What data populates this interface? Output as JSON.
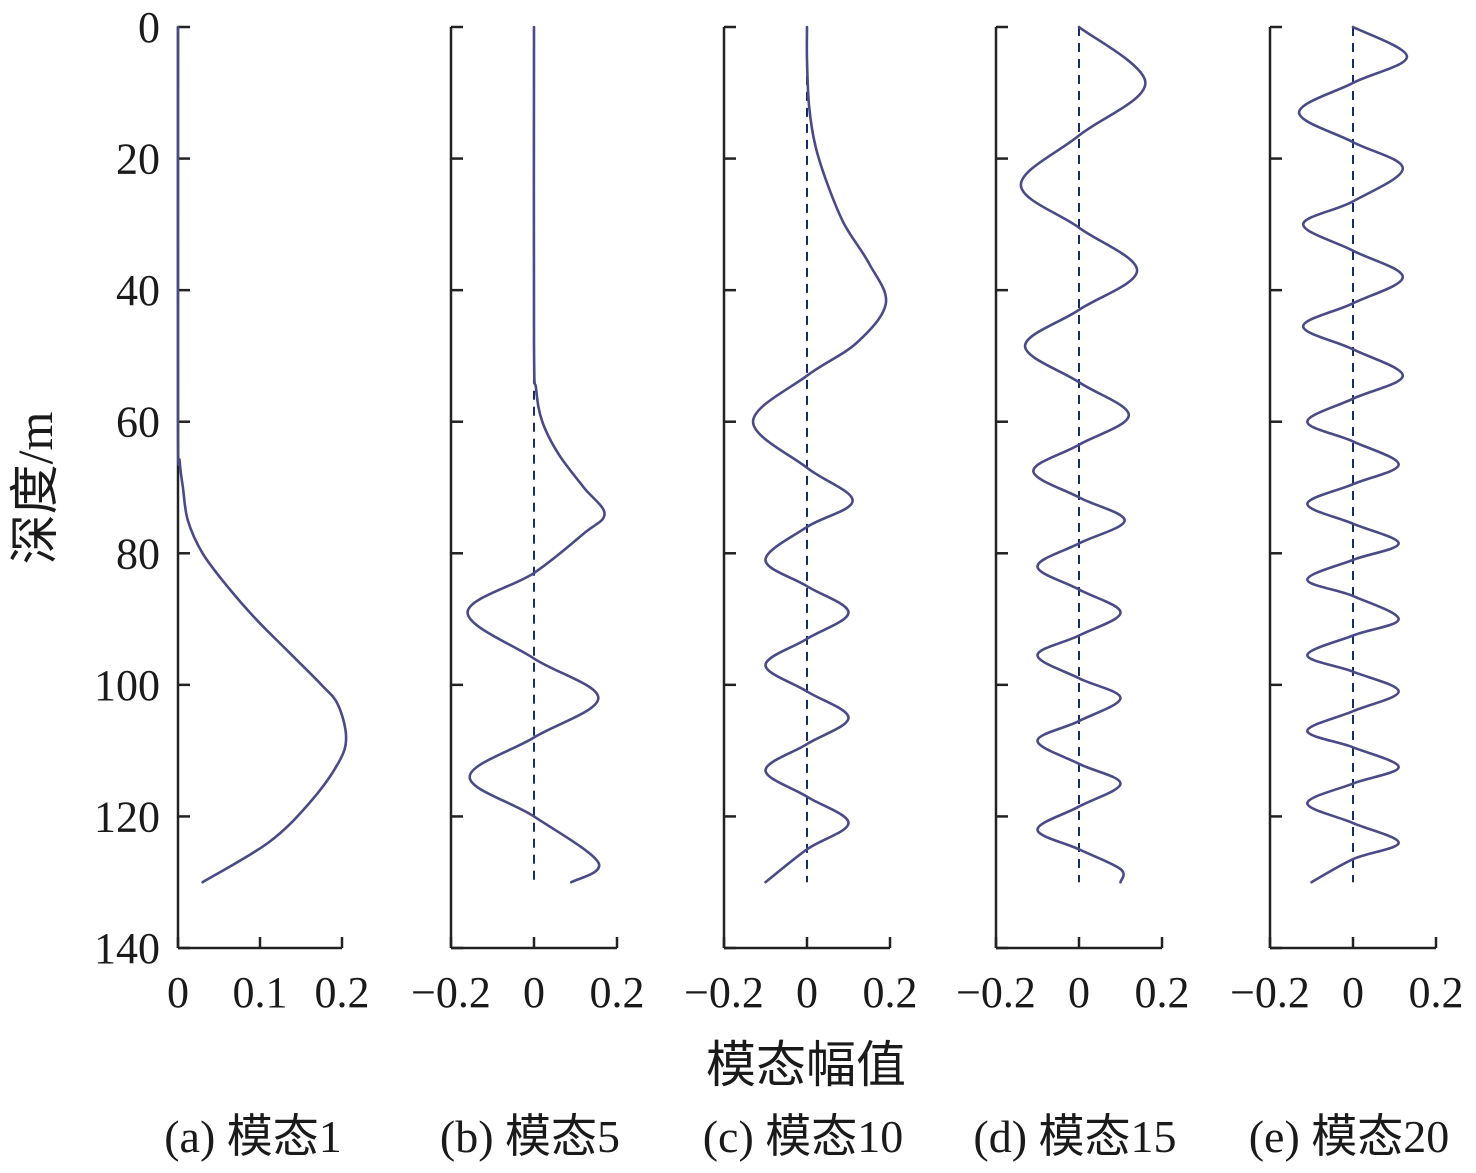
{
  "chart_data": {
    "type": "line",
    "ylabel": "深度/m",
    "xlabel": "模态幅值",
    "y_ticks": [
      "0",
      "20",
      "40",
      "60",
      "80",
      "100",
      "120",
      "140"
    ],
    "y_tick_values": [
      0,
      20,
      40,
      60,
      80,
      100,
      120,
      140
    ],
    "ylim": [
      0,
      140
    ],
    "y_inverted": true,
    "colors": {
      "curve_primary": "#4a4a86",
      "curve_alt": "#4848aa",
      "axis": "#222222",
      "zero_line": "#1c2a6a"
    },
    "panels": [
      {
        "caption": "(a) 模态1",
        "xlim": [
          0,
          0.2
        ],
        "x_ticks": [
          "0",
          "0.1",
          "0.2"
        ],
        "x_tick_values": [
          0,
          0.1,
          0.2
        ],
        "zero_line": false,
        "series": [
          {
            "mode": 1,
            "amplitude": 0.21,
            "depth_range": [
              0,
              130
            ],
            "points": [
              [
                0,
                0
              ],
              [
                60,
                0
              ],
              [
                66,
                0.002
              ],
              [
                70,
                0.006
              ],
              [
                75,
                0.012
              ],
              [
                80,
                0.03
              ],
              [
                85,
                0.06
              ],
              [
                90,
                0.095
              ],
              [
                95,
                0.135
              ],
              [
                100,
                0.175
              ],
              [
                103,
                0.195
              ],
              [
                108,
                0.205
              ],
              [
                112,
                0.195
              ],
              [
                118,
                0.16
              ],
              [
                124,
                0.11
              ],
              [
                130,
                0.03
              ]
            ]
          }
        ]
      },
      {
        "caption": "(b) 模态5",
        "xlim": [
          -0.2,
          0.2
        ],
        "x_ticks": [
          "−0.2",
          "0",
          "0.2"
        ],
        "x_tick_values": [
          -0.2,
          0,
          0.2
        ],
        "zero_line": true,
        "series": [
          {
            "mode": 5,
            "amplitude": 0.17,
            "depth_range": [
              0,
              130
            ],
            "onset_depth": 48,
            "zero_crossings": [
              83,
              96,
              108,
              120
            ],
            "points": [
              [
                0,
                0
              ],
              [
                48,
                0
              ],
              [
                55,
                0.005
              ],
              [
                60,
                0.02
              ],
              [
                65,
                0.06
              ],
              [
                70,
                0.12
              ],
              [
                74,
                0.17
              ],
              [
                77,
                0.12
              ],
              [
                83,
                0
              ],
              [
                89,
                -0.16
              ],
              [
                96,
                0
              ],
              [
                102,
                0.155
              ],
              [
                108,
                0
              ],
              [
                114,
                -0.155
              ],
              [
                120,
                0
              ],
              [
                127,
                0.155
              ],
              [
                130,
                0.09
              ]
            ]
          }
        ]
      },
      {
        "caption": "(c) 模态10",
        "xlim": [
          -0.2,
          0.2
        ],
        "x_ticks": [
          "−0.2",
          "0",
          "0.2"
        ],
        "x_tick_values": [
          -0.2,
          0,
          0.2
        ],
        "zero_line": true,
        "series": [
          {
            "mode": 10,
            "amplitude": 0.19,
            "depth_range": [
              0,
              130
            ],
            "onset_depth": 5,
            "zero_crossings": [
              53,
              67,
              76,
              85,
              93,
              101,
              109,
              117,
              125
            ],
            "points": [
              [
                0,
                0
              ],
              [
                5,
                0
              ],
              [
                12,
                0.005
              ],
              [
                18,
                0.02
              ],
              [
                24,
                0.05
              ],
              [
                30,
                0.09
              ],
              [
                36,
                0.15
              ],
              [
                42,
                0.19
              ],
              [
                48,
                0.12
              ],
              [
                53,
                0
              ],
              [
                60,
                -0.13
              ],
              [
                67,
                0
              ],
              [
                72,
                0.11
              ],
              [
                76,
                0
              ],
              [
                81,
                -0.1
              ],
              [
                85,
                0
              ],
              [
                89,
                0.1
              ],
              [
                93,
                0
              ],
              [
                97,
                -0.1
              ],
              [
                101,
                0
              ],
              [
                105,
                0.1
              ],
              [
                109,
                0
              ],
              [
                113,
                -0.1
              ],
              [
                117,
                0
              ],
              [
                121,
                0.1
              ],
              [
                125,
                0
              ],
              [
                130,
                -0.1
              ]
            ]
          }
        ]
      },
      {
        "caption": "(d) 模态15",
        "xlim": [
          -0.2,
          0.2
        ],
        "x_ticks": [
          "−0.2",
          "0",
          "0.2"
        ],
        "x_tick_values": [
          -0.2,
          0,
          0.2
        ],
        "zero_line": true,
        "series": [
          {
            "mode": 15,
            "amplitude": 0.14,
            "depth_range": [
              0,
              130
            ],
            "zero_crossings": [
              0,
              16.5,
              30.5,
              43,
              54,
              63.5,
              71.5,
              78.5,
              85.5,
              92.5,
              99,
              105.5,
              112,
              118.5,
              125
            ],
            "points": [
              [
                0,
                0
              ],
              [
                8.5,
                0.16
              ],
              [
                16.5,
                0
              ],
              [
                24,
                -0.14
              ],
              [
                30.5,
                0
              ],
              [
                37,
                0.14
              ],
              [
                43,
                0
              ],
              [
                48.5,
                -0.13
              ],
              [
                54,
                0
              ],
              [
                59,
                0.12
              ],
              [
                63.5,
                0
              ],
              [
                67.5,
                -0.11
              ],
              [
                71.5,
                0
              ],
              [
                75,
                0.11
              ],
              [
                78.5,
                0
              ],
              [
                82,
                -0.1
              ],
              [
                85.5,
                0
              ],
              [
                89,
                0.1
              ],
              [
                92.5,
                0
              ],
              [
                95.5,
                -0.1
              ],
              [
                99,
                0
              ],
              [
                102,
                0.1
              ],
              [
                105.5,
                0
              ],
              [
                108.5,
                -0.1
              ],
              [
                112,
                0
              ],
              [
                115,
                0.1
              ],
              [
                118.5,
                0
              ],
              [
                122,
                -0.1
              ],
              [
                125,
                0
              ],
              [
                128,
                0.1
              ],
              [
                130,
                0.1
              ]
            ]
          }
        ]
      },
      {
        "caption": "(e) 模态20",
        "xlim": [
          -0.2,
          0.2
        ],
        "x_ticks": [
          "−0.2",
          "0",
          "0.2"
        ],
        "x_tick_values": [
          -0.2,
          0,
          0.2
        ],
        "zero_line": true,
        "series": [
          {
            "mode": 20,
            "amplitude": 0.13,
            "depth_range": [
              0,
              130
            ],
            "zero_crossings": [
              0,
              8.5,
              17.5,
              26.5,
              34,
              42,
              49,
              56.5,
              63,
              69.5,
              75.5,
              81,
              86.5,
              92.5,
              98,
              104,
              109.5,
              115,
              121,
              126.5
            ],
            "points": [
              [
                0,
                0
              ],
              [
                4.5,
                0.13
              ],
              [
                8.5,
                0
              ],
              [
                13,
                -0.13
              ],
              [
                17.5,
                0
              ],
              [
                21.5,
                0.12
              ],
              [
                26.5,
                0
              ],
              [
                30,
                -0.12
              ],
              [
                34,
                0
              ],
              [
                38,
                0.12
              ],
              [
                42,
                0
              ],
              [
                45.5,
                -0.12
              ],
              [
                49,
                0
              ],
              [
                53,
                0.12
              ],
              [
                56.5,
                0
              ],
              [
                60,
                -0.11
              ],
              [
                63,
                0
              ],
              [
                66.5,
                0.11
              ],
              [
                69.5,
                0
              ],
              [
                72.5,
                -0.11
              ],
              [
                75.5,
                0
              ],
              [
                78.5,
                0.11
              ],
              [
                81,
                0
              ],
              [
                84,
                -0.11
              ],
              [
                86.5,
                0
              ],
              [
                90,
                0.11
              ],
              [
                92.5,
                0
              ],
              [
                95.5,
                -0.11
              ],
              [
                98,
                0
              ],
              [
                101,
                0.11
              ],
              [
                104,
                0
              ],
              [
                107,
                -0.11
              ],
              [
                109.5,
                0
              ],
              [
                112.5,
                0.11
              ],
              [
                115,
                0
              ],
              [
                118,
                -0.11
              ],
              [
                121,
                0
              ],
              [
                124,
                0.11
              ],
              [
                126.5,
                0
              ],
              [
                130,
                -0.1
              ]
            ]
          }
        ]
      }
    ]
  }
}
